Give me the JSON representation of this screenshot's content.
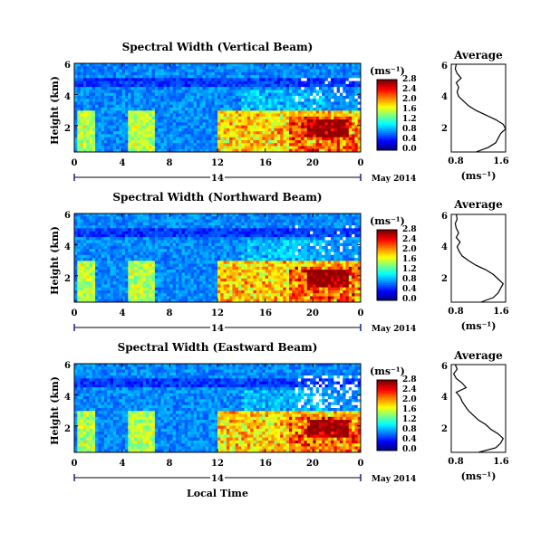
{
  "chart_data": [
    {
      "type": "heatmap",
      "title": "Spectral Width (Vertical Beam)",
      "ylabel": "Height (km)",
      "y_ticks": [
        "2",
        "4",
        "6"
      ],
      "x_ticks": [
        "0",
        "4",
        "8",
        "12",
        "16",
        "20",
        "0"
      ],
      "date_label": "14",
      "month_label": "May 2014",
      "xlim": [
        0,
        24
      ],
      "ylim": [
        0.3,
        6
      ],
      "colorbar": {
        "unit": "(ms⁻¹)",
        "ticks": [
          "0.0",
          "0.4",
          "0.8",
          "1.2",
          "1.6",
          "2.0",
          "2.4",
          "2.8"
        ]
      },
      "profile": {
        "title": "Average",
        "xlabel": "(ms⁻¹)",
        "x_ticks": [
          "0.8",
          "1.6"
        ],
        "y_ticks": [
          "2",
          "4",
          "6"
        ],
        "xlim": [
          0.5,
          1.6
        ],
        "ylim": [
          0.3,
          6
        ],
        "heights": [
          0.3,
          0.6,
          0.9,
          1.2,
          1.5,
          1.8,
          2.1,
          2.4,
          2.7,
          3.0,
          3.3,
          3.6,
          3.9,
          4.2,
          4.5,
          4.8,
          5.1,
          5.4,
          5.7,
          6.0
        ],
        "values": [
          1.0,
          1.25,
          1.4,
          1.45,
          1.5,
          1.6,
          1.55,
          1.4,
          1.2,
          1.0,
          0.85,
          0.75,
          0.65,
          0.62,
          0.65,
          0.6,
          0.7,
          0.62,
          0.58,
          0.6
        ]
      }
    },
    {
      "type": "heatmap",
      "title": "Spectral Width (Northward Beam)",
      "ylabel": "Height (km)",
      "y_ticks": [
        "2",
        "4",
        "6"
      ],
      "x_ticks": [
        "0",
        "4",
        "8",
        "12",
        "16",
        "20",
        "0"
      ],
      "date_label": "14",
      "month_label": "May 2014",
      "xlim": [
        0,
        24
      ],
      "ylim": [
        0.3,
        6
      ],
      "colorbar": {
        "unit": "(ms⁻¹)",
        "ticks": [
          "0.0",
          "0.4",
          "0.8",
          "1.2",
          "1.6",
          "2.0",
          "2.4",
          "2.8"
        ]
      },
      "profile": {
        "title": "Average",
        "xlabel": "(ms⁻¹)",
        "x_ticks": [
          "0.8",
          "1.6"
        ],
        "y_ticks": [
          "2",
          "4",
          "6"
        ],
        "xlim": [
          0.5,
          1.6
        ],
        "ylim": [
          0.3,
          6
        ],
        "heights": [
          0.3,
          0.6,
          0.9,
          1.2,
          1.5,
          1.8,
          2.1,
          2.4,
          2.7,
          3.0,
          3.3,
          3.6,
          3.9,
          4.2,
          4.5,
          4.8,
          5.1,
          5.4,
          5.7,
          6.0
        ],
        "values": [
          1.1,
          1.35,
          1.45,
          1.5,
          1.55,
          1.45,
          1.35,
          1.2,
          1.0,
          0.85,
          0.72,
          0.66,
          0.62,
          0.68,
          0.6,
          0.65,
          0.6,
          0.58,
          0.62,
          0.6
        ]
      }
    },
    {
      "type": "heatmap",
      "title": "Spectral Width (Eastward Beam)",
      "ylabel": "Height (km)",
      "y_ticks": [
        "2",
        "4",
        "6"
      ],
      "x_ticks": [
        "0",
        "4",
        "8",
        "12",
        "16",
        "20",
        "0"
      ],
      "date_label": "14",
      "month_label": "May 2014",
      "xlabel": "Local Time",
      "xlim": [
        0,
        24
      ],
      "ylim": [
        0.3,
        6
      ],
      "colorbar": {
        "unit": "(ms⁻¹)",
        "ticks": [
          "0.0",
          "0.4",
          "0.8",
          "1.2",
          "1.6",
          "2.0",
          "2.4",
          "2.8"
        ]
      },
      "profile": {
        "title": "Average",
        "xlabel": "(ms⁻¹)",
        "x_ticks": [
          "0.8",
          "1.6"
        ],
        "y_ticks": [
          "2",
          "4",
          "6"
        ],
        "xlim": [
          0.5,
          1.6
        ],
        "ylim": [
          0.3,
          6
        ],
        "heights": [
          0.3,
          0.6,
          0.9,
          1.2,
          1.5,
          1.8,
          2.1,
          2.4,
          2.7,
          3.0,
          3.3,
          3.6,
          3.9,
          4.2,
          4.5,
          4.8,
          5.1,
          5.4,
          5.7,
          6.0
        ],
        "values": [
          1.05,
          1.4,
          1.5,
          1.55,
          1.45,
          1.3,
          1.2,
          1.05,
          0.95,
          0.85,
          0.78,
          0.72,
          0.68,
          0.6,
          0.8,
          0.72,
          0.6,
          0.55,
          0.62,
          0.58
        ]
      }
    }
  ]
}
